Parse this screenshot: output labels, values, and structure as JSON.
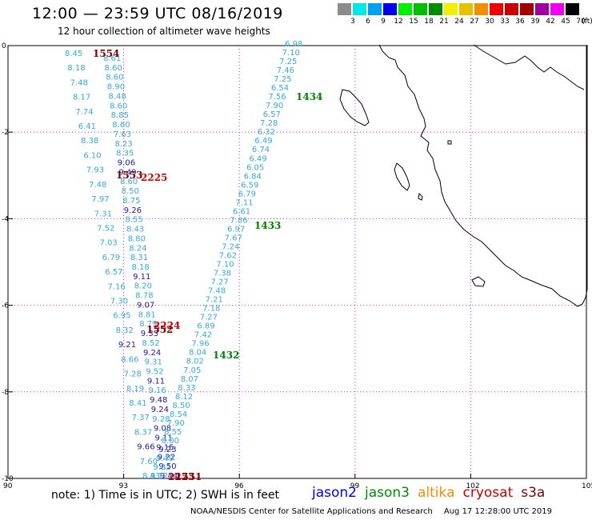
{
  "header": {
    "title": "12:00 — 23:59 UTC 08/16/2019",
    "subtitle": "12 hour collection of altimeter wave heights"
  },
  "legend": {
    "unit": "(ft)",
    "bins": [
      {
        "label": "3",
        "color": "#8c8c8c"
      },
      {
        "label": "6",
        "color": "#00e8e8"
      },
      {
        "label": "9",
        "color": "#00a0f0"
      },
      {
        "label": "12",
        "color": "#0000f0"
      },
      {
        "label": "15",
        "color": "#00f000"
      },
      {
        "label": "18",
        "color": "#00c000"
      },
      {
        "label": "21",
        "color": "#008c00"
      },
      {
        "label": "24",
        "color": "#f0f000"
      },
      {
        "label": "27",
        "color": "#e8c000"
      },
      {
        "label": "30",
        "color": "#f09000"
      },
      {
        "label": "33",
        "color": "#f00000"
      },
      {
        "label": "36",
        "color": "#c80000"
      },
      {
        "label": "39",
        "color": "#a00000"
      },
      {
        "label": "42",
        "color": "#a000a0"
      },
      {
        "label": "45",
        "color": "#f000f0"
      },
      {
        "label": "70",
        "color": "#000000"
      }
    ]
  },
  "map": {
    "lat_ticks": [
      "0",
      "-2",
      "-4",
      "-6",
      "-8",
      "-10"
    ],
    "lon_ticks": [
      "90",
      "93",
      "96",
      "99",
      "102",
      "105"
    ],
    "colors": {
      "light": "#36a9e0",
      "dark": "#1a1aa0",
      "pass_green": "#008000",
      "pass_red": "#cc0000",
      "pass_darkred": "#800000"
    },
    "tracks": [
      {
        "name": "west-track-upper",
        "values": [
          "8.45",
          "8.18",
          "7.48",
          "8.17",
          "7.74",
          "6.41",
          "8.38",
          "6.10",
          "7.93",
          "7.48",
          "7.97",
          "7.31",
          "7.52",
          "7.03",
          "6.79",
          "6.57",
          "7.16",
          "7.30",
          "6.95",
          "8.32",
          "9.21",
          "8.66",
          "7.28",
          "8.19",
          "8.41",
          "7.37",
          "8.37",
          "9.66",
          "7.60",
          "8.43"
        ],
        "dark": [
          false,
          false,
          false,
          false,
          false,
          false,
          false,
          false,
          false,
          false,
          false,
          false,
          false,
          false,
          false,
          false,
          false,
          false,
          false,
          false,
          true,
          false,
          false,
          false,
          false,
          false,
          false,
          true,
          false,
          false
        ]
      },
      {
        "name": "west-track-middle",
        "values": [
          "8.61",
          "8.60",
          "8.60",
          "8.90",
          "8.48",
          "8.60",
          "8.85",
          "8.60",
          "7.63",
          "8.23",
          "8.35",
          "9.06",
          "9.49",
          "8.60",
          "8.50",
          "8.75",
          "9.26",
          "8.55",
          "8.43",
          "8.80",
          "8.24",
          "8.31",
          "8.18",
          "9.11",
          "8.20",
          "8.78",
          "9.07",
          "8.81",
          "8.79",
          "9.33",
          "8.52",
          "9.24",
          "9.31",
          "9.52",
          "9.11",
          "9.16",
          "9.48",
          "9.24",
          "9.28",
          "9.08",
          "9.11",
          "9.15",
          "9.22",
          "9.50",
          "9.44"
        ],
        "dark": [
          false,
          false,
          false,
          false,
          false,
          false,
          false,
          false,
          false,
          false,
          false,
          true,
          true,
          false,
          false,
          false,
          true,
          false,
          false,
          false,
          false,
          false,
          false,
          true,
          false,
          false,
          true,
          false,
          false,
          true,
          false,
          true,
          false,
          false,
          true,
          false,
          true,
          true,
          false,
          true,
          true,
          true,
          true,
          true,
          true
        ]
      },
      {
        "name": "east-track",
        "values": [
          "6.98",
          "7.10",
          "7.25",
          "7.46",
          "7.25",
          "6.54",
          "7.56",
          "7.90",
          "6.57",
          "7.28",
          "6.32",
          "6.49",
          "6.74",
          "6.49",
          "6.05",
          "6.84",
          "6.59",
          "6.79",
          "7.11",
          "6.61",
          "7.86",
          "6.97",
          "7.67",
          "7.24",
          "7.62",
          "7.10",
          "7.38",
          "7.27",
          "7.48",
          "7.21",
          "7.18",
          "7.27",
          "6.89",
          "7.42",
          "7.96",
          "8.04",
          "8.02",
          "7.05",
          "8.07",
          "8.33",
          "8.12",
          "8.50",
          "8.54",
          "7.90",
          "8.55",
          "8.00",
          "9.23",
          "9.49",
          "9.32",
          "9.12"
        ],
        "dark": [
          false,
          false,
          false,
          false,
          false,
          false,
          false,
          false,
          false,
          false,
          false,
          false,
          false,
          false,
          false,
          false,
          false,
          false,
          false,
          false,
          false,
          false,
          false,
          false,
          false,
          false,
          false,
          false,
          false,
          false,
          false,
          false,
          false,
          false,
          false,
          false,
          false,
          false,
          false,
          false,
          false,
          false,
          false,
          false,
          false,
          false,
          true,
          false,
          false,
          false
        ]
      }
    ],
    "pass_labels": [
      {
        "text": "1554",
        "color": "#800000"
      },
      {
        "text": "1434",
        "color": "#008000"
      },
      {
        "text": "1553",
        "color": "#800000"
      },
      {
        "text": "2225",
        "color": "#cc0000"
      },
      {
        "text": "1433",
        "color": "#008000"
      },
      {
        "text": "2224",
        "color": "#cc0000"
      },
      {
        "text": "1552",
        "color": "#800000"
      },
      {
        "text": "1432",
        "color": "#008000"
      },
      {
        "text": "2223",
        "color": "#cc0000"
      },
      {
        "text": "1551",
        "color": "#800000"
      }
    ]
  },
  "footer": {
    "note": "note: 1) Time is in UTC; 2) SWH is in feet",
    "satellites": [
      {
        "name": "jason2",
        "color": "#0000f0"
      },
      {
        "name": "jason3",
        "color": "#008c00"
      },
      {
        "name": "altika",
        "color": "#f09000"
      },
      {
        "name": "cryosat",
        "color": "#cc0000"
      },
      {
        "name": "s3a",
        "color": "#800000"
      }
    ],
    "credit": "NOAA/NESDIS Center for Satellite Applications and Research",
    "timestamp": "Aug 17 12:28:00 UTC 2019"
  }
}
